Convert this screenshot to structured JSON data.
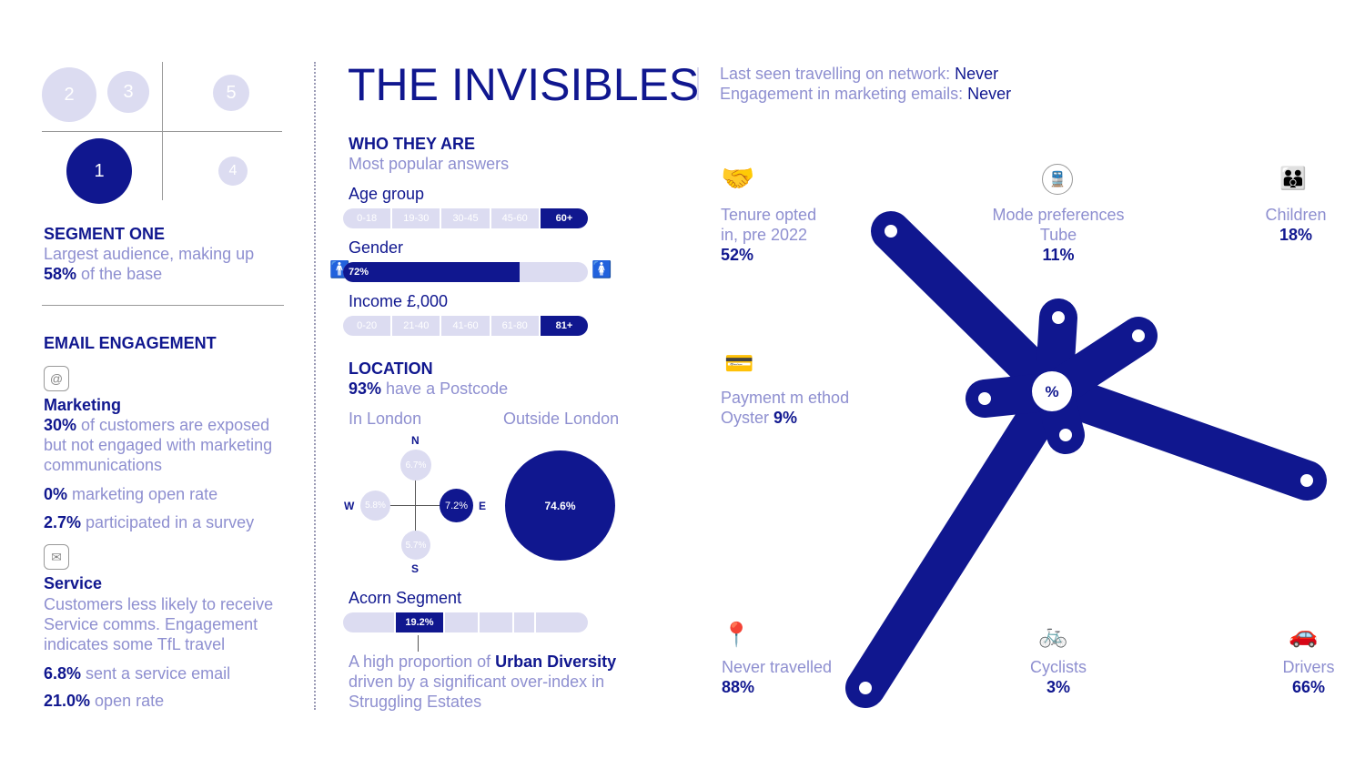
{
  "segments": {
    "circles": [
      "2",
      "3",
      "5",
      "1",
      "4"
    ],
    "title": "SEGMENT ONE",
    "desc_line1": "Largest audience, making up",
    "desc_pct": "58%",
    "desc_tail": " of the base"
  },
  "email": {
    "heading": "EMAIL ENGAGEMENT",
    "marketing_title": "Marketing",
    "marketing_pct": "30%",
    "marketing_l1": " of customers are exposed",
    "marketing_l2": "but not engaged with marketing",
    "marketing_l3": "communications",
    "open_pct": "0%",
    "open_text": " marketing open rate",
    "survey_pct": "2.7%",
    "survey_text": " participated in a survey",
    "service_title": "Service",
    "service_l1": "Customers less likely to receive",
    "service_l2": "Service comms. Engagement",
    "service_l3": "indicates some TfL travel",
    "sent_pct": "6.8%",
    "sent_text": " sent a service email",
    "rate_pct": "21.0%",
    "rate_text": " open rate"
  },
  "header": {
    "title": "THE INVISIBLES",
    "line1_label": "Last seen travelling on network: ",
    "line1_value": "Never",
    "line2_label": "Engagement in marketing emails: ",
    "line2_value": "Never"
  },
  "who": {
    "heading": "WHO THEY ARE",
    "sub": "Most popular answers",
    "age_label": "Age group",
    "age_cells": [
      "0-18",
      "19-30",
      "30-45",
      "45-60",
      "60+"
    ],
    "gender_label": "Gender",
    "gender_pct": "72%",
    "gender_value": 0.72,
    "income_label": "Income £,000",
    "income_cells": [
      "0-20",
      "21-40",
      "41-60",
      "61-80",
      "81+"
    ]
  },
  "location": {
    "heading": "LOCATION",
    "pct": "93%",
    "text": " have a Postcode",
    "in_london": "In London",
    "outside_london": "Outside London",
    "n": "N",
    "s": "S",
    "e": "E",
    "w": "W",
    "n_val": "6.7%",
    "s_val": "5.7%",
    "e_val": "7.2%",
    "w_val": "5.8%",
    "outside_val": "74.6%"
  },
  "acorn": {
    "label": "Acorn Segment",
    "value": "19.2%",
    "l1_pre": "A high proportion of ",
    "l1_bold": "Urban Diversity",
    "l2": "driven by a significant over-index in",
    "l3": "Struggling Estates"
  },
  "stats": {
    "tenure_l1": "Tenure opted",
    "tenure_l2": "in, pre 2022",
    "tenure_val": "52%",
    "mode_l1": "Mode preferences",
    "mode_l2": "Tube",
    "mode_val": "11%",
    "children_l1": "Children",
    "children_val": "18%",
    "payment_l1": "Payment m ethod",
    "payment_l2": "Oyster ",
    "payment_val": "9%",
    "never_l1": "Never travelled",
    "never_val": "88%",
    "cyclists_l1": "Cyclists",
    "cyclists_val": "3%",
    "drivers_l1": "Drivers",
    "drivers_val": "66%",
    "center": "%"
  },
  "colors": {
    "navy": "#10178f",
    "light": "#8e8fd0",
    "pale": "#dcdcf1"
  }
}
